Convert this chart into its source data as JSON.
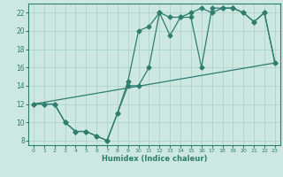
{
  "title": "",
  "xlabel": "Humidex (Indice chaleur)",
  "bg_color": "#cce8e0",
  "line_color": "#2e7d6e",
  "grid_color": "#aacfc8",
  "xlim": [
    -0.5,
    23.5
  ],
  "ylim": [
    7.5,
    23.0
  ],
  "xticks": [
    0,
    1,
    2,
    3,
    4,
    5,
    6,
    7,
    8,
    9,
    10,
    11,
    12,
    13,
    14,
    15,
    16,
    17,
    18,
    19,
    20,
    21,
    22,
    23
  ],
  "yticks": [
    8,
    10,
    12,
    14,
    16,
    18,
    20,
    22
  ],
  "line1_x": [
    0,
    1,
    2,
    3,
    4,
    5,
    6,
    7,
    8,
    9,
    10,
    11,
    12,
    13,
    14,
    15,
    16,
    17,
    18,
    19,
    20,
    21,
    22,
    23
  ],
  "line1_y": [
    12,
    12,
    12,
    10,
    9,
    9,
    8.5,
    8,
    11,
    14,
    14,
    16,
    22,
    21.5,
    21.5,
    22,
    22.5,
    22,
    22.5,
    22.5,
    22,
    21,
    22,
    16.5
  ],
  "line2_x": [
    0,
    1,
    2,
    3,
    4,
    5,
    6,
    7,
    8,
    9,
    10,
    11,
    12,
    13,
    14,
    15,
    16,
    17,
    18,
    19,
    20,
    21,
    22,
    23
  ],
  "line2_y": [
    12,
    12,
    12,
    10,
    9,
    9,
    8.5,
    8,
    11,
    14.5,
    20,
    20.5,
    22,
    19.5,
    21.5,
    21.5,
    16,
    22.5,
    22.5,
    22.5,
    22,
    21,
    22,
    16.5
  ],
  "line3_x": [
    0,
    23
  ],
  "line3_y": [
    12,
    16.5
  ]
}
